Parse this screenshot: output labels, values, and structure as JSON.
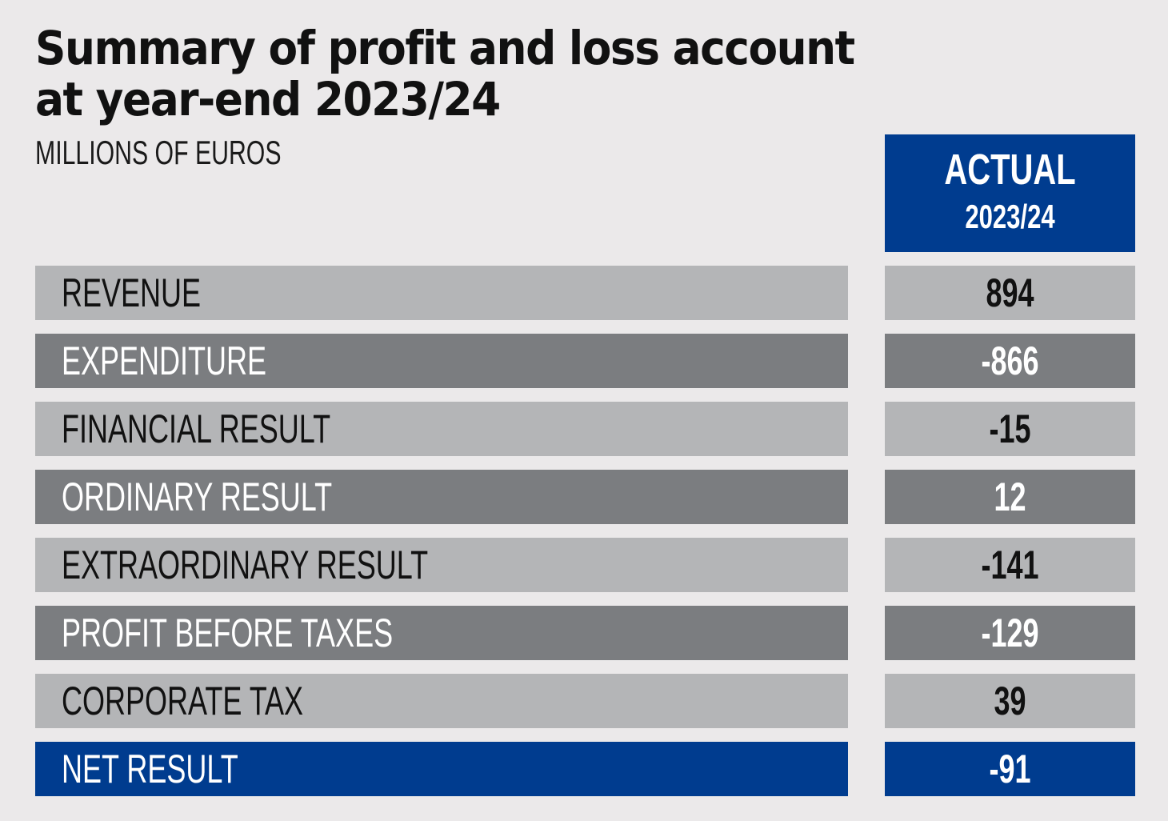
{
  "chart_data": {
    "type": "table",
    "title": "Summary of profit and loss account at year-end 2023/24",
    "title_lines": [
      "Summary of profit and loss account",
      "at year-end 2023/24"
    ],
    "subtitle": "MILLIONS OF EUROS",
    "column_header": {
      "line1": "ACTUAL",
      "line2": "2023/24"
    },
    "categories": [
      "REVENUE",
      "EXPENDITURE",
      "FINANCIAL RESULT",
      "ORDINARY RESULT",
      "EXTRAORDINARY RESULT",
      "PROFIT BEFORE TAXES",
      "CORPORATE TAX",
      "NET RESULT"
    ],
    "values": [
      894,
      -866,
      -15,
      12,
      -141,
      -129,
      39,
      -91
    ],
    "value_labels": [
      "894",
      "-866",
      "-15",
      "12",
      "-141",
      "-129",
      "39",
      "-91"
    ],
    "row_styles": [
      "light",
      "dark",
      "light",
      "dark",
      "light",
      "dark",
      "light",
      "blue"
    ]
  },
  "colors": {
    "background": "#ebe9ea",
    "light_row": "#b4b5b7",
    "dark_row": "#7b7d80",
    "accent_blue": "#003c8f",
    "title_text": "#111111"
  }
}
